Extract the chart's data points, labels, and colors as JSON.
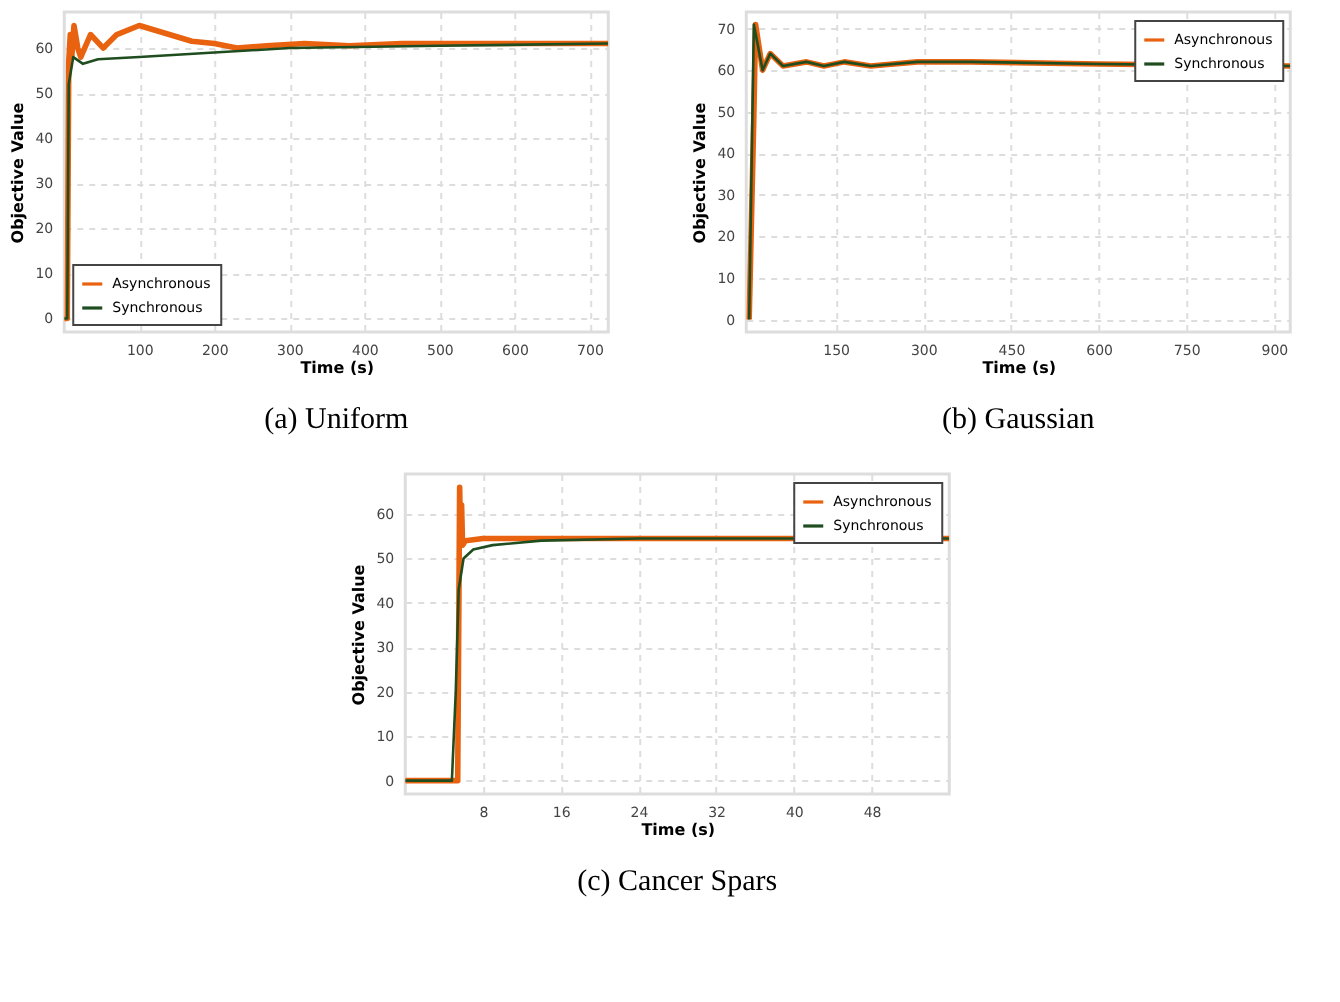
{
  "chart_data": [
    {
      "type": "line",
      "title": "(a)  Uniform",
      "xlabel": "Time (s)",
      "ylabel": "Objective Value",
      "xlim": [
        0,
        725
      ],
      "ylim": [
        -3,
        68
      ],
      "xticks": [
        100,
        200,
        300,
        400,
        500,
        600,
        700
      ],
      "yticks": [
        0,
        10,
        20,
        30,
        40,
        50,
        60
      ],
      "grid": true,
      "legend": "bottom left",
      "line_style": "solid",
      "series": [
        {
          "name": "Asynchronous",
          "color": "#e8620f",
          "x": [
            0,
            4,
            6,
            8,
            10,
            13,
            18,
            22,
            35,
            52,
            70,
            100,
            140,
            170,
            200,
            230,
            270,
            320,
            380,
            450,
            500,
            725
          ],
          "values": [
            0,
            0,
            57,
            63,
            58,
            65,
            60,
            58,
            63,
            60,
            63,
            65,
            63,
            61.5,
            61,
            60,
            60.5,
            61,
            60.5,
            61,
            61,
            61
          ]
        },
        {
          "name": "Synchronous",
          "color": "#1f4d1f",
          "x": [
            0,
            4,
            6,
            12,
            25,
            45,
            100,
            200,
            300,
            500,
            725
          ],
          "values": [
            0,
            0,
            52,
            58,
            56.5,
            57.5,
            58,
            59,
            60,
            60.5,
            61
          ]
        }
      ]
    },
    {
      "type": "line",
      "title": "(b)  Gaussian",
      "xlabel": "Time (s)",
      "ylabel": "Objective Value",
      "xlim": [
        -3,
        928
      ],
      "ylim": [
        -3,
        74
      ],
      "xticks": [
        150,
        300,
        450,
        600,
        750,
        900
      ],
      "yticks": [
        0,
        10,
        20,
        30,
        40,
        50,
        60,
        70
      ],
      "grid": true,
      "legend": "top right",
      "line_style": "solid",
      "series": [
        {
          "name": "Asynchronous",
          "color": "#e8620f",
          "x": [
            2,
            10,
            13,
            25,
            38,
            60,
            100,
            130,
            165,
            210,
            290,
            380,
            600,
            928
          ],
          "values": [
            0,
            49,
            71,
            60,
            64,
            61,
            62,
            61,
            62,
            61,
            62,
            62,
            61.5,
            61
          ]
        },
        {
          "name": "Synchronous",
          "color": "#1f4d1f",
          "x": [
            2,
            10,
            25,
            38,
            60,
            100,
            130,
            165,
            210,
            290,
            380,
            600,
            928
          ],
          "values": [
            0,
            71,
            60,
            64,
            61,
            62,
            61,
            62,
            61,
            62,
            62,
            61.5,
            61
          ]
        }
      ]
    },
    {
      "type": "line",
      "title": "(c)  Cancer Spars",
      "xlabel": "Time (s)",
      "ylabel": "Objective Value",
      "xlim": [
        0,
        56
      ],
      "ylim": [
        -3,
        69
      ],
      "xticks": [
        8,
        16,
        24,
        32,
        40,
        48
      ],
      "yticks": [
        0,
        10,
        20,
        30,
        40,
        50,
        60
      ],
      "grid": true,
      "legend": "top right",
      "line_style": "solid",
      "series": [
        {
          "name": "Asynchronous",
          "color": "#e8620f",
          "x": [
            0,
            5.4,
            5.6,
            5.7,
            5.8,
            5.9,
            6.2,
            8,
            56
          ],
          "values": [
            0,
            0,
            66,
            54,
            62,
            53,
            54,
            54.5,
            54.5
          ]
        },
        {
          "name": "Synchronous",
          "color": "#1f4d1f",
          "x": [
            0,
            4.8,
            5.2,
            5.5,
            6,
            7,
            9,
            14,
            24,
            56
          ],
          "values": [
            0,
            0,
            20,
            43,
            50,
            52,
            53,
            54,
            54.5,
            54.5
          ]
        }
      ]
    }
  ]
}
